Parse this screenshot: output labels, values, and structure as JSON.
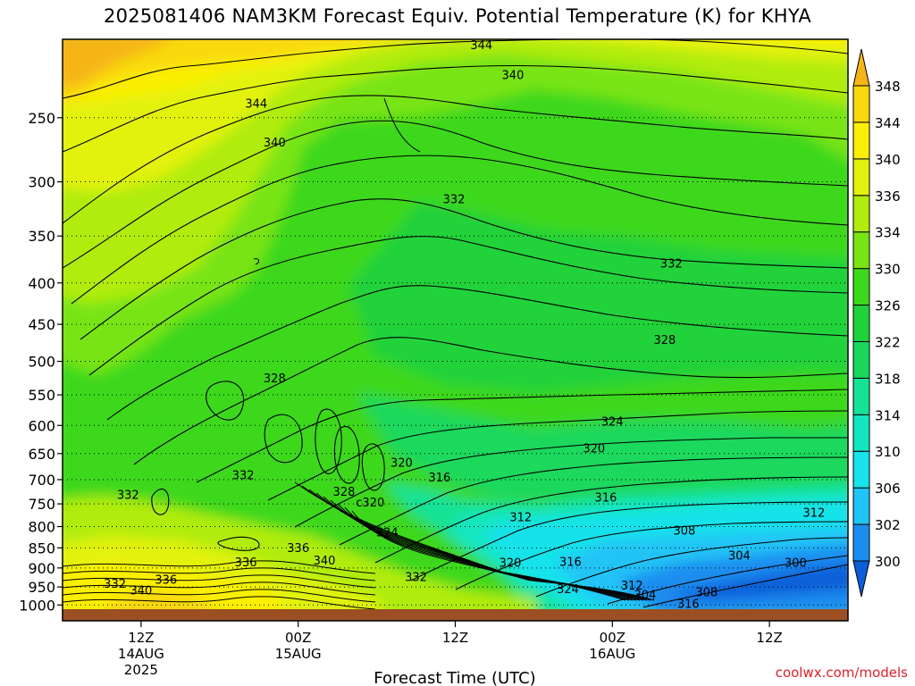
{
  "chart_data": {
    "type": "heatmap",
    "title": "2025081406 NAM3KM Forecast Equiv. Potential Temperature (K) for KHYA",
    "xlabel": "Forecast Time (UTC)",
    "ylabel": "",
    "x_ticks": [
      {
        "label": "12Z",
        "sub": "14AUG",
        "sub2": "2025",
        "hour": 6
      },
      {
        "label": "00Z",
        "sub": "15AUG",
        "sub2": "",
        "hour": 18
      },
      {
        "label": "12Z",
        "sub": "",
        "sub2": "",
        "hour": 30
      },
      {
        "label": "00Z",
        "sub": "16AUG",
        "sub2": "",
        "hour": 42
      },
      {
        "label": "12Z",
        "sub": "",
        "sub2": "",
        "hour": 54
      }
    ],
    "xlim_hours": [
      0,
      60
    ],
    "y_ticks": [
      250,
      300,
      350,
      400,
      450,
      500,
      550,
      600,
      650,
      700,
      750,
      800,
      850,
      900,
      950,
      1000
    ],
    "ylim_hpa": [
      1012,
      200
    ],
    "colorbar": {
      "levels": [
        300,
        302,
        306,
        310,
        314,
        318,
        322,
        326,
        330,
        334,
        336,
        340,
        344,
        348
      ],
      "colors": [
        "#0a5ed8",
        "#1b8ef0",
        "#20c4f6",
        "#18e2ea",
        "#12e6c0",
        "#14e296",
        "#1ad85c",
        "#20d23a",
        "#3cd81c",
        "#78e414",
        "#b0ec0e",
        "#e2f20a",
        "#fbef06",
        "#f9d810",
        "#f5b516"
      ]
    },
    "contour_labels": [
      {
        "text": "344",
        "hour": 32.0,
        "p": 203
      },
      {
        "text": "340",
        "hour": 34.4,
        "p": 221
      },
      {
        "text": "344",
        "hour": 14.8,
        "p": 240
      },
      {
        "text": "340",
        "hour": 16.2,
        "p": 268
      },
      {
        "text": "332",
        "hour": 29.9,
        "p": 315
      },
      {
        "text": "332",
        "hour": 46.5,
        "p": 378
      },
      {
        "text": "328",
        "hour": 46.0,
        "p": 470
      },
      {
        "text": "328",
        "hour": 16.2,
        "p": 524
      },
      {
        "text": "324",
        "hour": 42.0,
        "p": 593
      },
      {
        "text": "320",
        "hour": 40.6,
        "p": 640
      },
      {
        "text": "320",
        "hour": 25.9,
        "p": 666
      },
      {
        "text": "316",
        "hour": 28.8,
        "p": 695
      },
      {
        "text": "332",
        "hour": 13.8,
        "p": 690
      },
      {
        "text": "332",
        "hour": 5.0,
        "p": 730
      },
      {
        "text": "328",
        "hour": 21.5,
        "p": 724
      },
      {
        "text": "c320",
        "hour": 23.5,
        "p": 746
      },
      {
        "text": "316",
        "hour": 41.5,
        "p": 736
      },
      {
        "text": "312",
        "hour": 35.0,
        "p": 778
      },
      {
        "text": "312",
        "hour": 57.4,
        "p": 768
      },
      {
        "text": "324",
        "hour": 24.8,
        "p": 812
      },
      {
        "text": "308",
        "hour": 47.5,
        "p": 808
      },
      {
        "text": "336",
        "hour": 18.0,
        "p": 849
      },
      {
        "text": "304",
        "hour": 51.7,
        "p": 868
      },
      {
        "text": "336",
        "hour": 14.0,
        "p": 885
      },
      {
        "text": "340",
        "hour": 20.0,
        "p": 880
      },
      {
        "text": "320",
        "hour": 34.2,
        "p": 886
      },
      {
        "text": "316",
        "hour": 38.8,
        "p": 883
      },
      {
        "text": "300",
        "hour": 56.0,
        "p": 886
      },
      {
        "text": "332",
        "hour": 27.0,
        "p": 922
      },
      {
        "text": "336",
        "hour": 7.9,
        "p": 930
      },
      {
        "text": "332",
        "hour": 4.0,
        "p": 940
      },
      {
        "text": "340",
        "hour": 6.0,
        "p": 958
      },
      {
        "text": "324",
        "hour": 38.6,
        "p": 955
      },
      {
        "text": "312",
        "hour": 43.5,
        "p": 945
      },
      {
        "text": "308",
        "hour": 49.2,
        "p": 963
      },
      {
        "text": "304",
        "hour": 44.5,
        "p": 970
      },
      {
        "text": "316",
        "hour": 47.8,
        "p": 995
      }
    ]
  },
  "watermark": "coolwx.com/models"
}
